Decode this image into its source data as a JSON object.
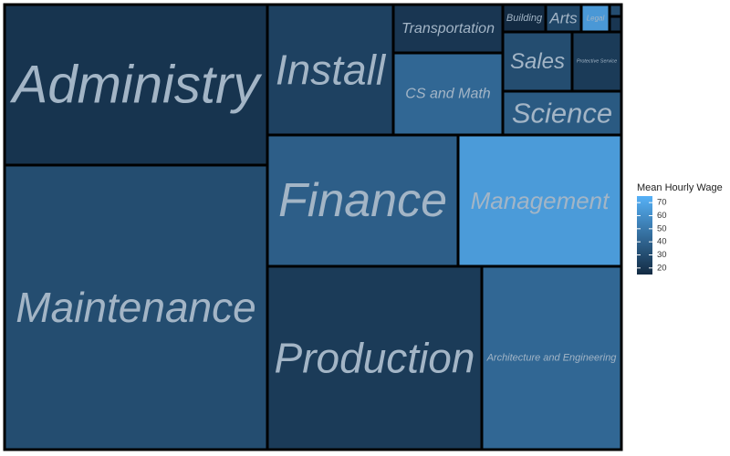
{
  "chart_data": {
    "type": "treemap",
    "legend_title": "Mean Hourly Wage",
    "legend_ticks": [
      70,
      60,
      50,
      40,
      30,
      20
    ],
    "color_range": [
      15,
      75
    ],
    "colors": {
      "low": "#132b43",
      "high": "#56b1f7",
      "label": "#a3b5c6",
      "border": "#000000"
    },
    "tiles": [
      {
        "name": "Administry",
        "wage": 19
      },
      {
        "name": "Maintenance",
        "wage": 30
      },
      {
        "name": "Install",
        "wage": 25
      },
      {
        "name": "Transportation",
        "wage": 20
      },
      {
        "name": "Building",
        "wage": 15
      },
      {
        "name": "Arts",
        "wage": 27
      },
      {
        "name": "Legal",
        "wage": 64
      },
      {
        "name": "CS and Math",
        "wage": 42
      },
      {
        "name": "Sales",
        "wage": 30
      },
      {
        "name": "Protective Service",
        "wage": 22
      },
      {
        "name": "Science",
        "wage": 36
      },
      {
        "name": "Finance",
        "wage": 38
      },
      {
        "name": "Management",
        "wage": 65
      },
      {
        "name": "Production",
        "wage": 22
      },
      {
        "name": "Architecture and Engineering",
        "wage": 42
      },
      {
        "name": "",
        "wage": 30
      },
      {
        "name": "",
        "wage": 20
      }
    ]
  }
}
